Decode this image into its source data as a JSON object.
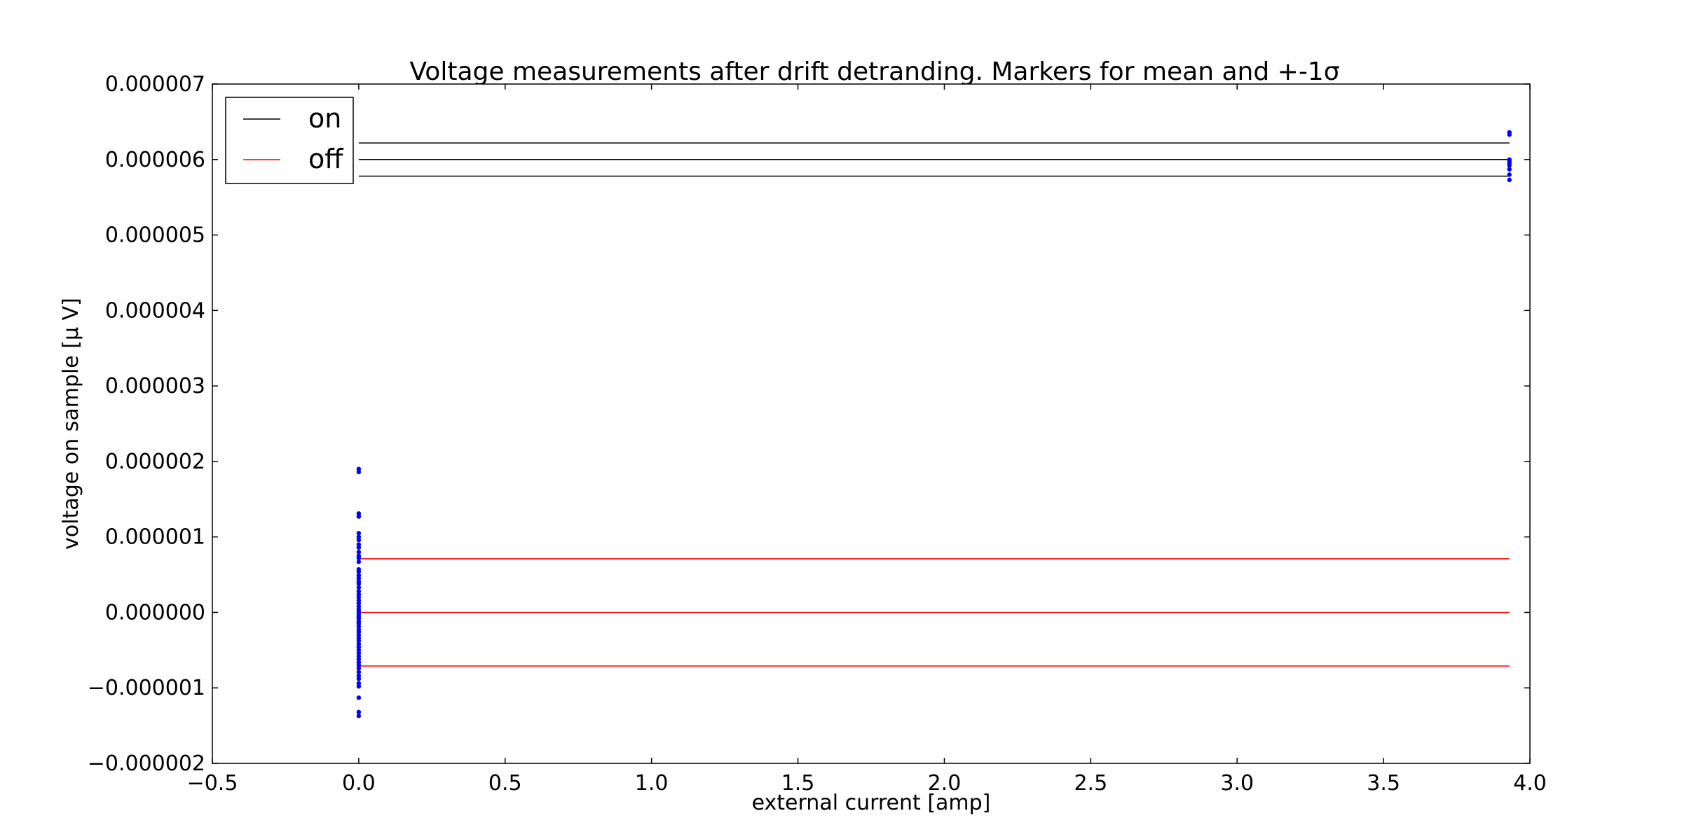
{
  "chart_data": {
    "type": "scatter",
    "title": "Voltage measurements after drift detranding. Markers for mean and +-1σ",
    "xlabel": "external current [amp]",
    "ylabel": "voltage on sample [μ V]",
    "xlim": [
      -0.5,
      4.0
    ],
    "ylim": [
      -2e-06,
      7e-06
    ],
    "xticks": [
      -0.5,
      0.0,
      0.5,
      1.0,
      1.5,
      2.0,
      2.5,
      3.0,
      3.5,
      4.0
    ],
    "xtick_labels": [
      "−0.5",
      "0.0",
      "0.5",
      "1.0",
      "1.5",
      "2.0",
      "2.5",
      "3.0",
      "3.5",
      "4.0"
    ],
    "yticks": [
      -2e-06,
      -1e-06,
      0.0,
      1e-06,
      2e-06,
      3e-06,
      4e-06,
      5e-06,
      6e-06,
      7e-06
    ],
    "ytick_labels": [
      "−0.000002",
      "−0.000001",
      "0.000000",
      "0.000001",
      "0.000002",
      "0.000003",
      "0.000004",
      "0.000005",
      "0.000006",
      "0.000007"
    ],
    "grid": false,
    "legend_position": "top-left",
    "colors": {
      "on": "#000000",
      "off": "#ff0000",
      "points": "#0000ff"
    },
    "reference_lines": [
      {
        "name": "on",
        "x_start": 0.0,
        "x_end": 3.93,
        "values": [
          6.22e-06,
          6e-06,
          5.78e-06
        ]
      },
      {
        "name": "off",
        "x_start": 0.0,
        "x_end": 3.93,
        "values": [
          7.1e-07,
          0.0,
          -7.1e-07
        ]
      }
    ],
    "series": [
      {
        "x": 0.0,
        "y": [
          1.9e-06,
          1.86e-06,
          1.31e-06,
          1.27e-06,
          1.05e-06,
          1e-06,
          9.6e-07,
          9e-07,
          8.6e-07,
          8e-07,
          7.5e-07,
          7.2e-07,
          6.7e-07,
          5.7e-07,
          5.4e-07,
          4.9e-07,
          4.5e-07,
          4.1e-07,
          3.8e-07,
          3.3e-07,
          2.8e-07,
          2.4e-07,
          2e-07,
          1.6e-07,
          1.2e-07,
          8e-08,
          4e-08,
          1e-08,
          -2e-08,
          -5e-08,
          -8e-08,
          -1.2e-07,
          -1.5e-07,
          -1.9e-07,
          -2.3e-07,
          -2.6e-07,
          -3e-07,
          -3.4e-07,
          -3.8e-07,
          -4.2e-07,
          -4.6e-07,
          -5e-07,
          -5.4e-07,
          -5.8e-07,
          -6.2e-07,
          -6.6e-07,
          -7e-07,
          -7.4e-07,
          -7.9e-07,
          -8.4e-07,
          -8.8e-07,
          -9.4e-07,
          -9.8e-07,
          -1.13e-06,
          -1.32e-06,
          -1.37e-06
        ]
      },
      {
        "x": 3.93,
        "y": [
          6.36e-06,
          6.33e-06,
          6e-06,
          5.98e-06,
          5.95e-06,
          5.92e-06,
          5.87e-06,
          5.8e-06,
          5.73e-06
        ]
      }
    ],
    "legend": [
      {
        "label": "on",
        "color": "#000000"
      },
      {
        "label": "off",
        "color": "#ff0000"
      }
    ]
  }
}
